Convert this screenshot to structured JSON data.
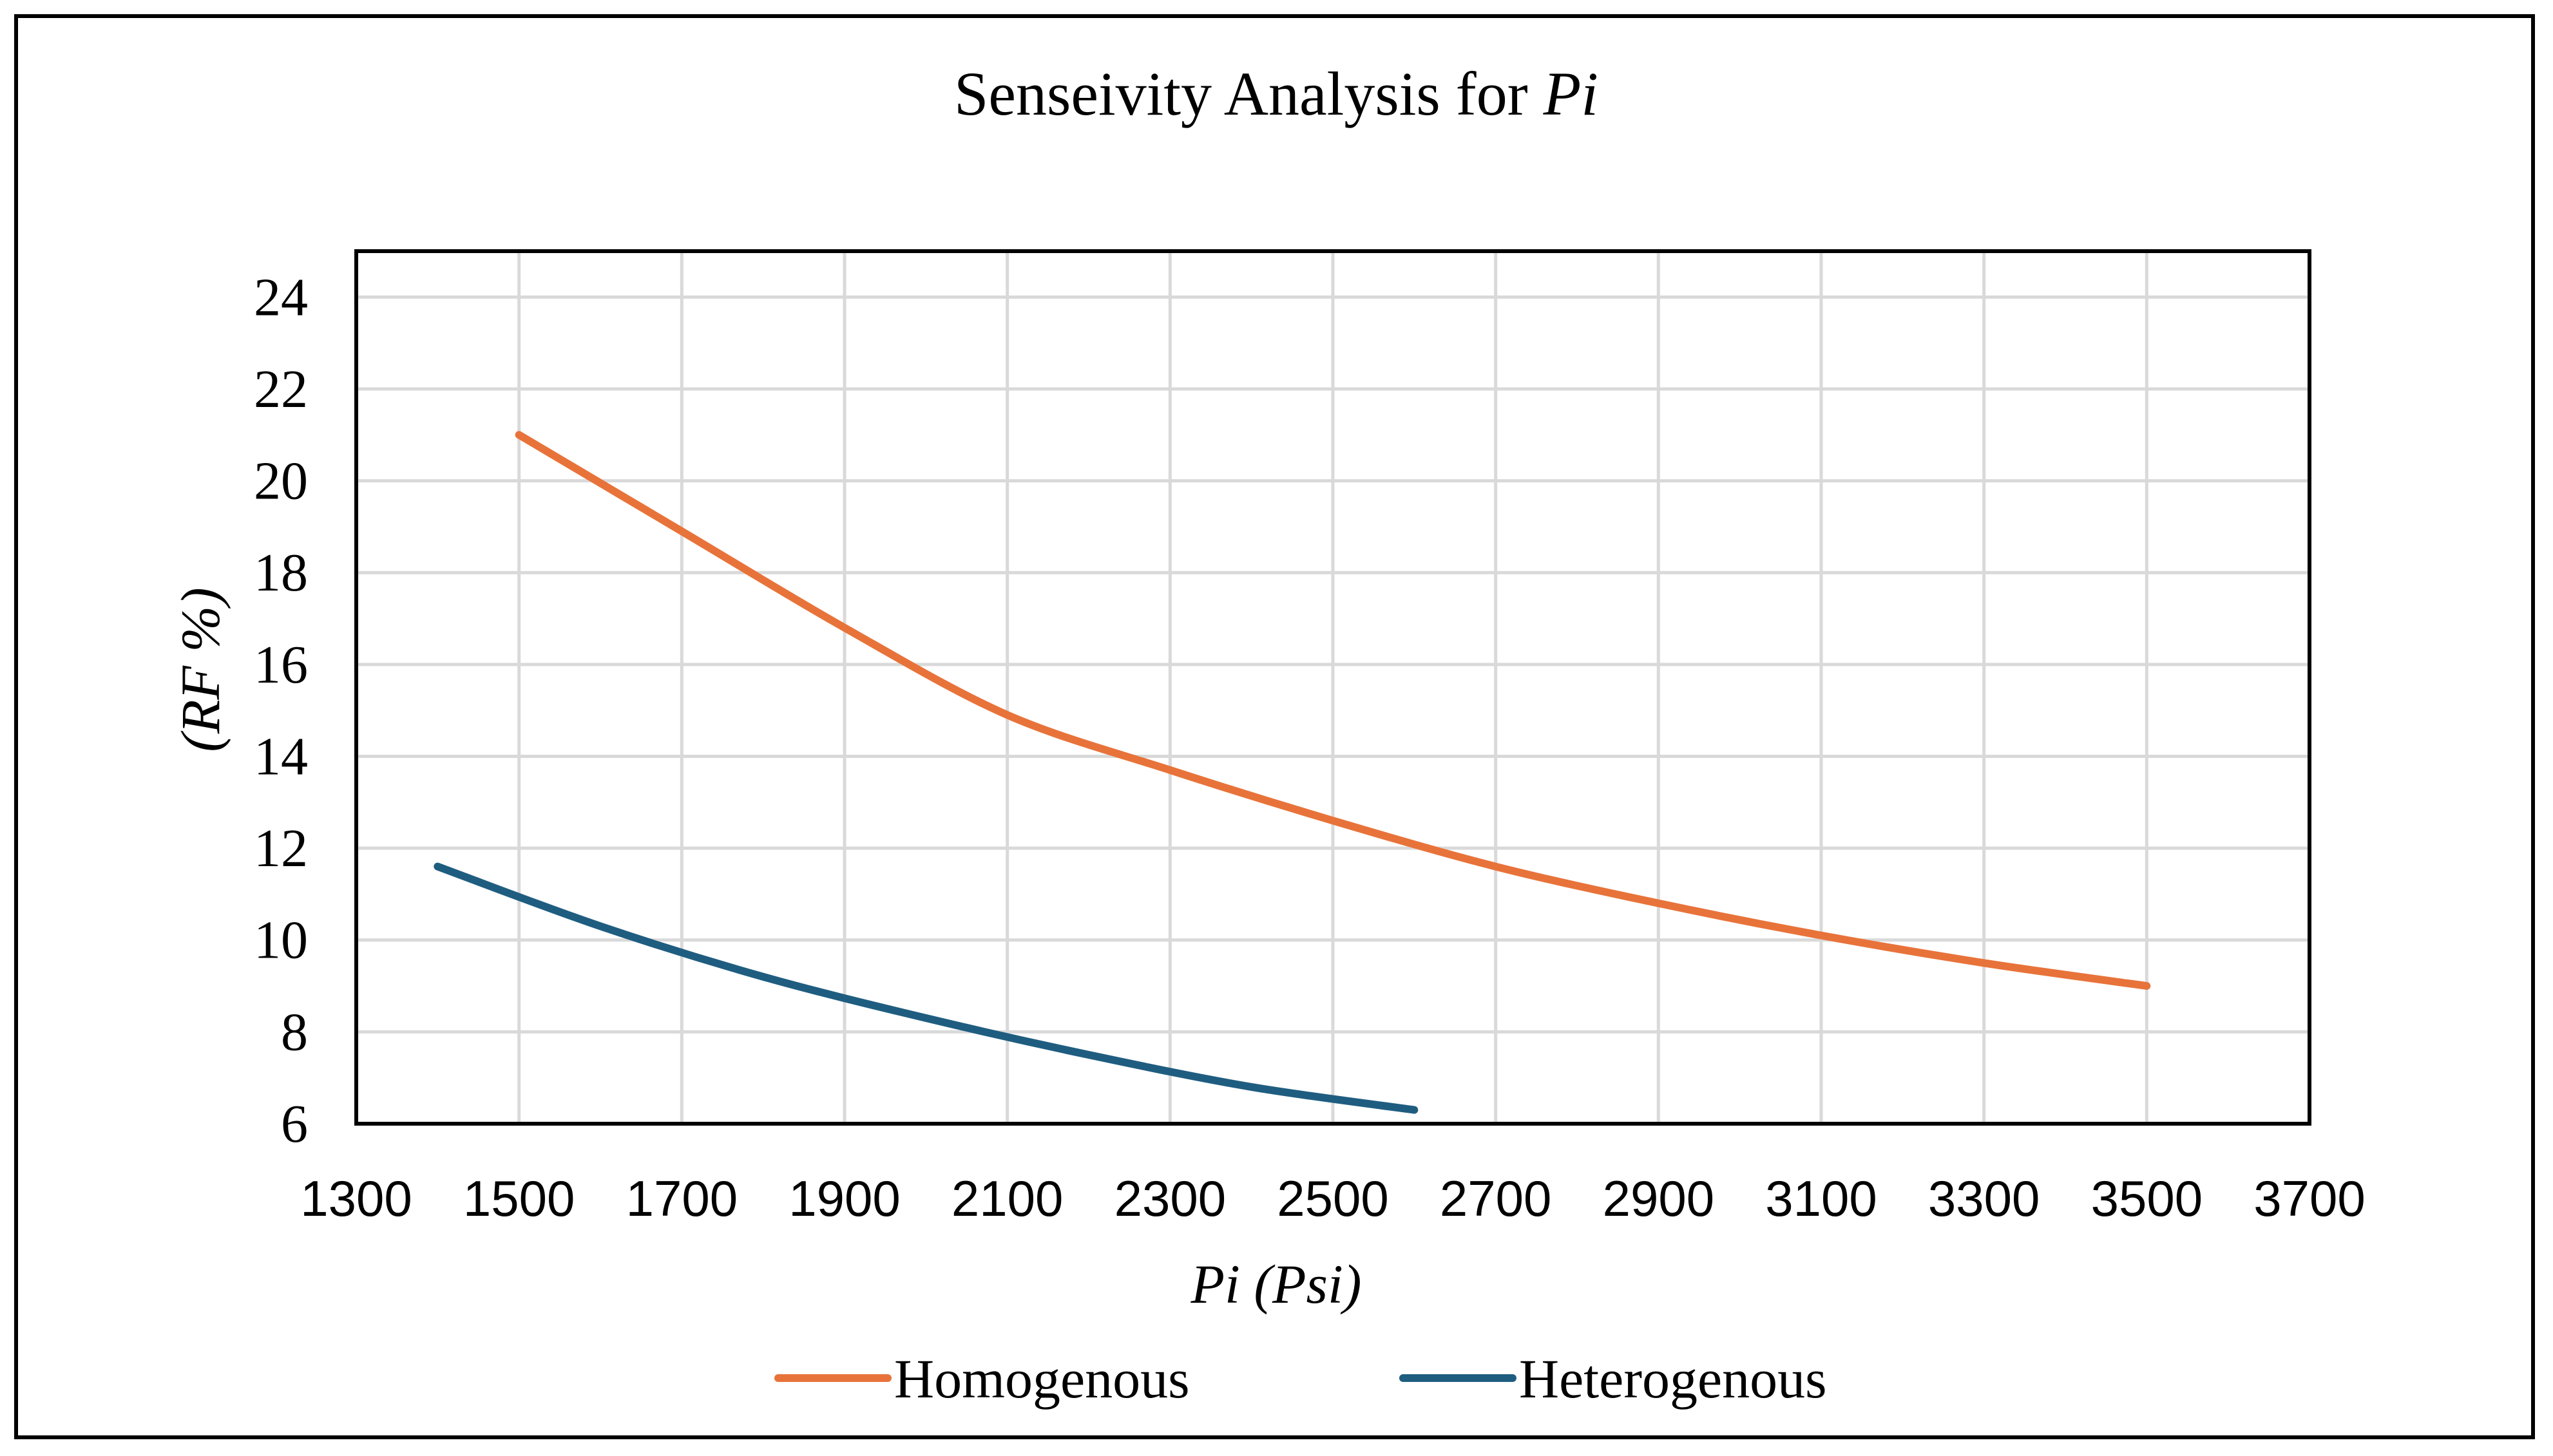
{
  "chart_data": {
    "type": "line",
    "title": "Senseivity Analysis for ",
    "title_italic": "Pi",
    "xlabel": "Pi (Psi)",
    "ylabel": "(RF %)",
    "xlim": [
      1300,
      3700
    ],
    "ylim": [
      6,
      25
    ],
    "x_ticks": [
      1300,
      1500,
      1700,
      1900,
      2100,
      2300,
      2500,
      2700,
      2900,
      3100,
      3300,
      3500,
      3700
    ],
    "y_ticks": [
      6,
      8,
      10,
      12,
      14,
      16,
      18,
      20,
      22,
      24
    ],
    "grid": true,
    "legend_position": "bottom",
    "series": [
      {
        "name": "Homogenous",
        "color": "#E8733A",
        "x": [
          1500,
          1700,
          1900,
          2100,
          2300,
          2500,
          2700,
          2900,
          3100,
          3300,
          3500
        ],
        "y": [
          21.0,
          18.9,
          16.8,
          14.9,
          13.7,
          12.6,
          11.6,
          10.8,
          10.1,
          9.5,
          9.0
        ]
      },
      {
        "name": "Heterogenous",
        "color": "#1F5D80",
        "x": [
          1400,
          1600,
          1800,
          2000,
          2200,
          2400,
          2600
        ],
        "y": [
          11.6,
          10.3,
          9.2,
          8.3,
          7.5,
          6.8,
          6.3
        ]
      }
    ]
  }
}
